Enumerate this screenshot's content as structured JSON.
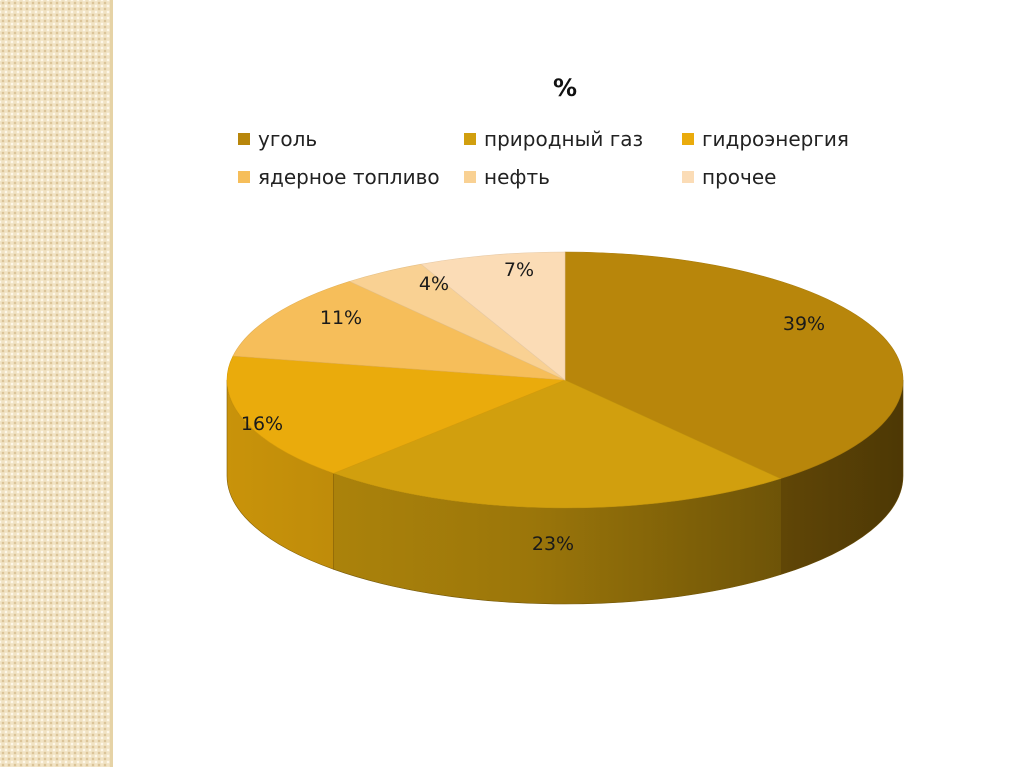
{
  "colors": {
    "side_strip": "#f1e3c4"
  },
  "chart_data": {
    "type": "pie",
    "title": "%",
    "legend_position": "top",
    "three_d": true,
    "slices": [
      {
        "name": "уголь",
        "value": 39,
        "label": "39%",
        "color": "#b8860b"
      },
      {
        "name": "природный газ",
        "value": 23,
        "label": "23%",
        "color": "#d19f0e"
      },
      {
        "name": "гидроэнергия",
        "value": 16,
        "label": "16%",
        "color": "#eaab0c"
      },
      {
        "name": "ядерное топливо",
        "value": 11,
        "label": "11%",
        "color": "#f6be5a"
      },
      {
        "name": "нефть",
        "value": 4,
        "label": "4%",
        "color": "#f9d193"
      },
      {
        "name": "прочее",
        "value": 7,
        "label": "7%",
        "color": "#fbdcb6"
      }
    ]
  }
}
